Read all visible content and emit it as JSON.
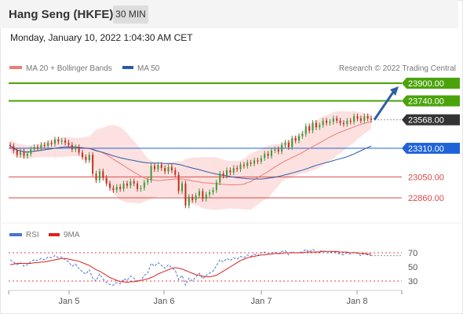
{
  "header": {
    "title": "Hang Seng (HKFE)",
    "timeframe": "30 MIN",
    "datetime": "Monday, January 10, 2022 1:04:30 AM CET"
  },
  "legend": {
    "ma20_label": "MA 20 + Bollinger Bands",
    "ma50_label": "MA 50",
    "ma20_color": "#f07a74",
    "ma50_color": "#2d5aa8",
    "credit": "Research © 2022 Trading Central"
  },
  "rsi_legend": {
    "rsi_label": "RSI",
    "ma_label": "9MA",
    "rsi_color": "#4a74c9",
    "ma_color": "#e02020"
  },
  "chart_data": [
    {
      "type": "candlestick",
      "title": "",
      "x_ticks": [
        "Jan 5",
        "Jan 6",
        "Jan 7",
        "Jan 8"
      ],
      "ylim": [
        22700,
        24000
      ],
      "levels": [
        {
          "value": 23900.0,
          "label": "23900.00",
          "role": "resistance",
          "color": "#4aa30a"
        },
        {
          "value": 23740.0,
          "label": "23740.00",
          "role": "resistance",
          "color": "#4aa30a"
        },
        {
          "value": 23568.0,
          "label": "23568.00",
          "role": "last-price",
          "color": "#333333"
        },
        {
          "value": 23310.0,
          "label": "23310.00",
          "role": "pivot",
          "color": "#1f63d6"
        },
        {
          "value": 23050.0,
          "label": "23050.00",
          "role": "support",
          "color": "#d94a4a"
        },
        {
          "value": 22860.0,
          "label": "22860.00",
          "role": "support",
          "color": "#d94a4a"
        }
      ],
      "candle_colors": {
        "up": "#3b9a3b",
        "down": "#c03020"
      },
      "candles_close": [
        23330,
        23290,
        23250,
        23280,
        23240,
        23260,
        23300,
        23320,
        23310,
        23340,
        23330,
        23360,
        23350,
        23390,
        23370,
        23380,
        23360,
        23340,
        23300,
        23320,
        23270,
        23230,
        23200,
        23250,
        23080,
        23020,
        23100,
        23040,
        22990,
        22950,
        22930,
        22960,
        22940,
        22990,
        22970,
        23010,
        22990,
        22940,
        22950,
        23000,
        23020,
        23150,
        23120,
        23160,
        23130,
        23100,
        23140,
        23110,
        23070,
        22920,
        22990,
        22790,
        22870,
        22840,
        22880,
        22920,
        22850,
        22890,
        22910,
        22930,
        23000,
        23080,
        23060,
        23110,
        23090,
        23130,
        23120,
        23160,
        23150,
        23180,
        23170,
        23200,
        23190,
        23220,
        23260,
        23240,
        23290,
        23300,
        23280,
        23340,
        23360,
        23320,
        23400,
        23380,
        23420,
        23440,
        23510,
        23470,
        23540,
        23500,
        23520,
        23560,
        23540,
        23550,
        23580,
        23560,
        23540,
        23530,
        23560,
        23550,
        23600,
        23580,
        23560,
        23600,
        23580,
        23568
      ]
    },
    {
      "type": "line",
      "title": "RSI",
      "ylim": [
        20,
        80
      ],
      "y_ticks": [
        30,
        50,
        70
      ],
      "x_ticks": [
        "Jan 5",
        "Jan 6",
        "Jan 7",
        "Jan 8"
      ],
      "series": [
        {
          "name": "RSI",
          "values": [
            60,
            57,
            53,
            56,
            51,
            53,
            58,
            60,
            59,
            62,
            60,
            64,
            63,
            66,
            63,
            64,
            60,
            57,
            51,
            54,
            48,
            43,
            40,
            46,
            34,
            30,
            40,
            33,
            28,
            25,
            24,
            28,
            26,
            33,
            31,
            37,
            34,
            29,
            31,
            38,
            41,
            55,
            51,
            56,
            52,
            48,
            53,
            49,
            45,
            32,
            38,
            24,
            34,
            30,
            36,
            41,
            33,
            38,
            41,
            44,
            52,
            60,
            57,
            62,
            59,
            63,
            61,
            65,
            63,
            67,
            65,
            68,
            66,
            70,
            71,
            68,
            70,
            71,
            68,
            72,
            73,
            67,
            72,
            69,
            71,
            71,
            75,
            71,
            75,
            71,
            72,
            73,
            70,
            70,
            72,
            70,
            68,
            67,
            70,
            68,
            71,
            69,
            66,
            69,
            67,
            66
          ]
        },
        {
          "name": "9MA",
          "values": [
            53,
            54,
            55,
            55,
            55,
            55,
            55,
            56,
            56,
            57,
            57,
            58,
            59,
            60,
            61,
            62,
            62,
            61,
            60,
            59,
            58,
            56,
            54,
            52,
            49,
            46,
            44,
            41,
            38,
            35,
            33,
            31,
            29,
            29,
            28,
            29,
            29,
            30,
            31,
            32,
            33,
            35,
            37,
            40,
            42,
            44,
            46,
            48,
            49,
            48,
            47,
            45,
            43,
            41,
            39,
            38,
            37,
            36,
            36,
            37,
            38,
            41,
            44,
            47,
            50,
            53,
            56,
            59,
            61,
            63,
            64,
            65,
            66,
            67,
            67,
            68,
            68,
            69,
            69,
            69,
            70,
            70,
            70,
            70,
            70,
            70,
            71,
            71,
            71,
            71,
            71,
            72,
            72,
            72,
            72,
            72,
            71,
            71,
            71,
            70,
            70,
            70,
            69,
            69,
            68,
            68
          ]
        }
      ]
    }
  ]
}
